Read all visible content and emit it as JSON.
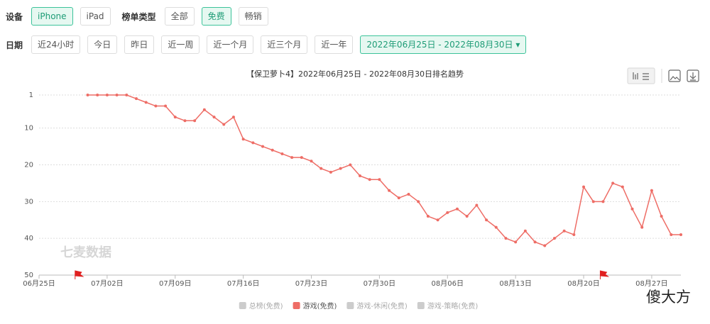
{
  "filters": {
    "device": {
      "label": "设备",
      "options": [
        "iPhone",
        "iPad"
      ],
      "active": 0
    },
    "list_type": {
      "label": "榜单类型",
      "options": [
        "全部",
        "免费",
        "畅销"
      ],
      "active": 1
    },
    "date": {
      "label": "日期",
      "options": [
        "近24小时",
        "今日",
        "昨日",
        "近一周",
        "近一个月",
        "近三个月",
        "近一年"
      ],
      "range": "2022年06月25日 - 2022年08月30日"
    }
  },
  "chart_data": {
    "type": "line",
    "title": "【保卫萝卜4】2022年06月25日 - 2022年08月30日排名趋势",
    "x": [
      "06月30日",
      "07月01日",
      "07月02日",
      "07月03日",
      "07月04日",
      "07月05日",
      "07月06日",
      "07月07日",
      "07月08日",
      "07月09日",
      "07月10日",
      "07月11日",
      "07月12日",
      "07月13日",
      "07月14日",
      "07月15日",
      "07月16日",
      "07月17日",
      "07月18日",
      "07月19日",
      "07月20日",
      "07月21日",
      "07月22日",
      "07月23日",
      "07月24日",
      "07月25日",
      "07月26日",
      "07月27日",
      "07月28日",
      "07月29日",
      "07月30日",
      "07月31日",
      "08月01日",
      "08月02日",
      "08月03日",
      "08月04日",
      "08月05日",
      "08月06日",
      "08月07日",
      "08月08日",
      "08月09日",
      "08月10日",
      "08月11日",
      "08月12日",
      "08月13日",
      "08月14日",
      "08月15日",
      "08月16日",
      "08月17日",
      "08月18日",
      "08月19日",
      "08月20日",
      "08月21日",
      "08月22日",
      "08月23日",
      "08月24日",
      "08月25日",
      "08月26日",
      "08月27日",
      "08月28日",
      "08月29日",
      "08月30日"
    ],
    "series": [
      {
        "name": "游戏(免费)",
        "color": "#ee6d66",
        "values": [
          1,
          1,
          1,
          1,
          1,
          2,
          3,
          4,
          4,
          7,
          8,
          8,
          5,
          7,
          9,
          7,
          13,
          14,
          15,
          16,
          17,
          18,
          18,
          19,
          21,
          22,
          21,
          20,
          23,
          24,
          24,
          27,
          29,
          28,
          30,
          34,
          35,
          33,
          32,
          34,
          31,
          35,
          37,
          40,
          41,
          38,
          41,
          42,
          40,
          38,
          39,
          26,
          30,
          30,
          25,
          26,
          32,
          37,
          27,
          34,
          39,
          39
        ]
      }
    ],
    "hidden_series": [
      "总榜(免费)",
      "游戏-休闲(免费)",
      "游戏-策略(免费)"
    ],
    "hidden_color": "#cccccc",
    "xlim": [
      "06月25日",
      "08月30日"
    ],
    "xticks": [
      "06月25日",
      "07月02日",
      "07月09日",
      "07月16日",
      "07月23日",
      "07月30日",
      "08月06日",
      "08月13日",
      "08月20日",
      "08月27日"
    ],
    "ylim": [
      50,
      1
    ],
    "yticks": [
      1,
      10,
      20,
      30,
      40,
      50
    ],
    "grid": true,
    "event_flags": [
      "06月29日",
      "08月22日"
    ],
    "watermark": "七麦数据"
  },
  "corner_watermark": "傻大方"
}
